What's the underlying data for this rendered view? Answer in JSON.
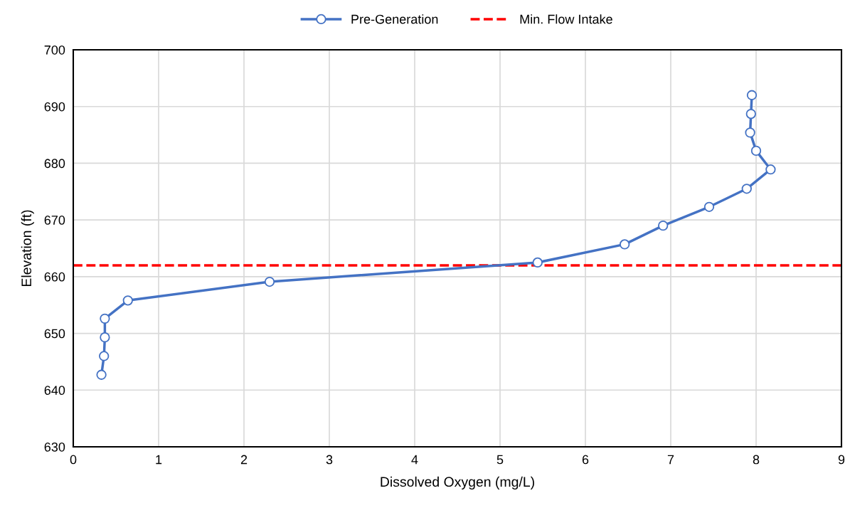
{
  "chart_data": {
    "type": "line",
    "xlabel": "Dissolved Oxygen (mg/L)",
    "ylabel": "Elevation (ft)",
    "series": [
      {
        "name": "Pre-Generation",
        "color": "#4472c4",
        "x": [
          0.33,
          0.36,
          0.37,
          0.37,
          0.64,
          2.3,
          5.44,
          6.46,
          6.91,
          7.45,
          7.89,
          8.17,
          8.0,
          7.93,
          7.94,
          7.95
        ],
        "values": [
          642.7,
          646.0,
          649.3,
          652.6,
          655.8,
          659.1,
          662.5,
          665.7,
          669.0,
          672.3,
          675.5,
          678.9,
          682.2,
          685.4,
          688.7,
          692.0
        ]
      }
    ],
    "ref_lines": [
      {
        "axis": "y",
        "value": 662,
        "label": "Min. Flow Intake",
        "color": "#ff0000",
        "line_style": "dashed"
      }
    ],
    "xlim": [
      0,
      9
    ],
    "xticks": [
      0,
      1,
      2,
      3,
      4,
      5,
      6,
      7,
      8,
      9
    ],
    "ylim": [
      630,
      700
    ],
    "yticks": [
      630,
      640,
      650,
      660,
      670,
      680,
      690,
      700
    ],
    "grid": true,
    "legend": "top",
    "marker": "circle",
    "line_style": "solid"
  }
}
